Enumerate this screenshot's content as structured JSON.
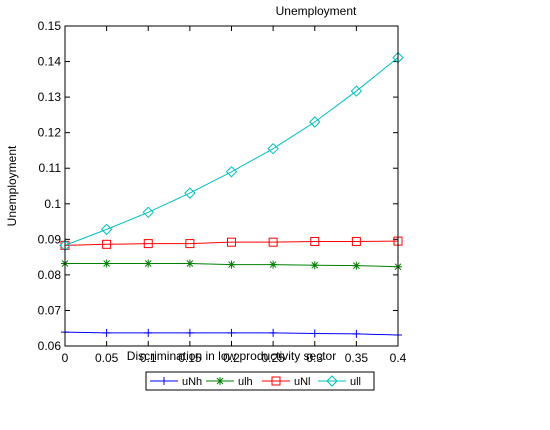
{
  "chart_data": {
    "type": "line",
    "title": "Unemployment",
    "xlabel": "Discrimination in low productivity sector",
    "ylabel": "Unemployment",
    "xlim": [
      0,
      0.4
    ],
    "ylim": [
      0.06,
      0.15
    ],
    "xticks": [
      0,
      0.05,
      0.1,
      0.15,
      0.2,
      0.25,
      0.3,
      0.35,
      0.4
    ],
    "xtick_labels": [
      "0",
      "0.05",
      "0.1",
      "0.15",
      "0.2",
      "0.25",
      "0.3",
      "0.35",
      "0.4"
    ],
    "yticks": [
      0.06,
      0.07,
      0.08,
      0.09,
      0.1,
      0.11,
      0.12,
      0.13,
      0.14,
      0.15
    ],
    "ytick_labels": [
      "0.06",
      "0.07",
      "0.08",
      "0.09",
      "0.1",
      "0.11",
      "0.12",
      "0.13",
      "0.14",
      "0.15"
    ],
    "grid": false,
    "legend_position": "bottom-outside",
    "x": [
      0,
      0.05,
      0.1,
      0.15,
      0.2,
      0.25,
      0.3,
      0.35,
      0.4
    ],
    "series": [
      {
        "name": "uNh",
        "color": "#0000ff",
        "marker": "plus",
        "values": [
          0.0639,
          0.0637,
          0.0637,
          0.0637,
          0.0637,
          0.0637,
          0.0635,
          0.0634,
          0.0631
        ]
      },
      {
        "name": "ulh",
        "color": "#008000",
        "marker": "star",
        "values": [
          0.0832,
          0.0832,
          0.0832,
          0.0832,
          0.0829,
          0.0829,
          0.0827,
          0.0826,
          0.0823
        ]
      },
      {
        "name": "uNl",
        "color": "#ff0000",
        "marker": "square",
        "values": [
          0.0883,
          0.0886,
          0.0888,
          0.0888,
          0.0892,
          0.0892,
          0.0894,
          0.0894,
          0.0895
        ]
      },
      {
        "name": "ull",
        "color": "#00bfbf",
        "marker": "diamond",
        "values": [
          0.0883,
          0.0928,
          0.0976,
          0.103,
          0.109,
          0.1155,
          0.123,
          0.1317,
          0.1411
        ]
      }
    ]
  }
}
